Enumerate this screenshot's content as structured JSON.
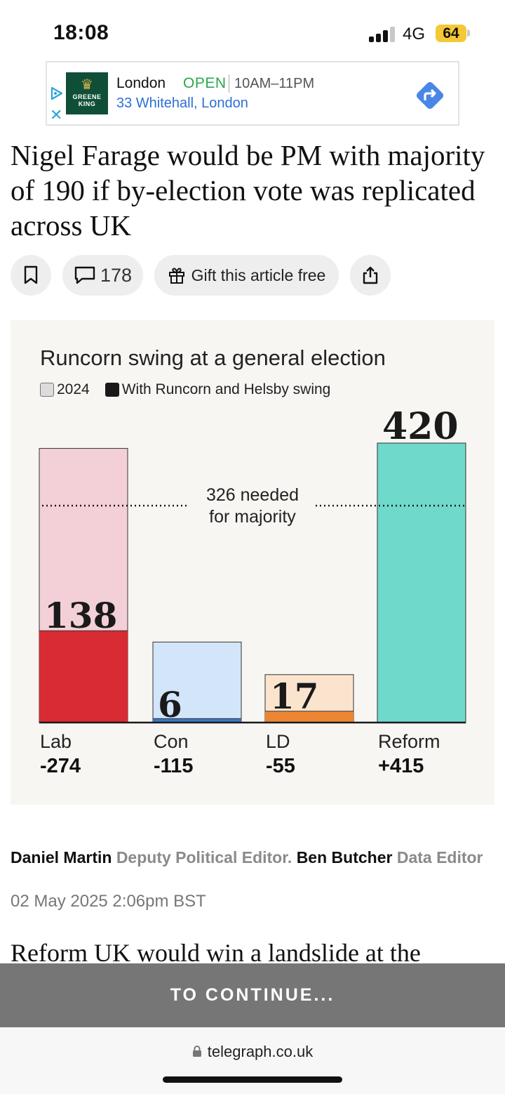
{
  "status_bar": {
    "time": "18:08",
    "network": "4G",
    "battery": "64",
    "battery_color": "#f5c935"
  },
  "ad": {
    "brand_logo_text": "GREENE KING",
    "name": "London",
    "status": "OPEN",
    "hours": "10AM–11PM",
    "address": "33 Whitehall, London",
    "icons": [
      "adchoices-icon",
      "close-icon",
      "directions-icon"
    ]
  },
  "article": {
    "headline": "Nigel Farage would be PM with majority of 190 if by-election vote was replicated across UK",
    "comment_count": "178",
    "gift_label": "Gift this article free",
    "icons": [
      "bookmark-icon",
      "comment-icon",
      "gift-icon",
      "share-icon"
    ],
    "byline": {
      "author1": "Daniel Martin",
      "role1": "Deputy Political Editor.",
      "author2": "Ben Butcher",
      "role2": "Data Editor"
    },
    "date": "02 May 2025 2:06pm BST",
    "body_start": "Reform UK would win a landslide at the"
  },
  "chart_data": {
    "type": "bar",
    "title": "Runcorn swing at a general election",
    "legend": [
      "2024",
      "With Runcorn and Helsby swing"
    ],
    "categories": [
      "Lab",
      "Con",
      "LD",
      "Reform"
    ],
    "changes": [
      "-274",
      "-115",
      "-55",
      "+415"
    ],
    "series": [
      {
        "name": "2024",
        "values": [
          412,
          121,
          72,
          5
        ]
      },
      {
        "name": "With Runcorn and Helsby swing",
        "values": [
          138,
          6,
          17,
          420
        ]
      }
    ],
    "value_labels": [
      "138",
      "6",
      "17",
      "420"
    ],
    "majority_line": 326,
    "majority_label_line1": "326 needed",
    "majority_label_line2": "for majority",
    "ylim": [
      0,
      420
    ],
    "colors": {
      "Lab": {
        "light": "#f3cfd7",
        "dark": "#d92b33"
      },
      "Con": {
        "light": "#d3e5f8",
        "dark": "#3a78c9"
      },
      "LD": {
        "light": "#fbe4ce",
        "dark": "#ec8632"
      },
      "Reform": {
        "light": "#ffffff",
        "dark": "#6fd9cb"
      }
    }
  },
  "overlay": {
    "continue_label": "TO CONTINUE..."
  },
  "browser": {
    "url": "telegraph.co.uk"
  }
}
